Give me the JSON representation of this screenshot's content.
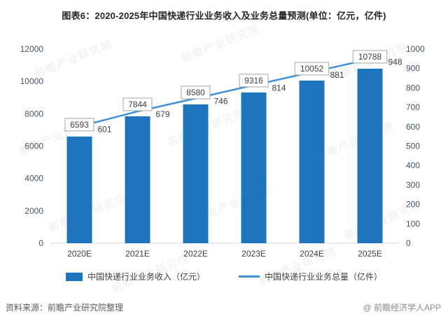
{
  "title": "图表6：2020-2025年中国快递行业业务收入及业务总量预测(单位：亿元，亿件)",
  "chart_data": {
    "type": "combo",
    "categories": [
      "2020E",
      "2021E",
      "2022E",
      "2023E",
      "2024E",
      "2025E"
    ],
    "series": [
      {
        "name": "中国快递行业业务收入（亿元）",
        "type": "bar",
        "axis": "left",
        "values": [
          6593,
          7844,
          8580,
          9316,
          10052,
          10788
        ],
        "color": "#1d76bd"
      },
      {
        "name": "中国快递行业业务总量（亿件）",
        "type": "line",
        "axis": "right",
        "values": [
          601,
          679,
          746,
          814,
          881,
          948
        ],
        "color": "#4090d5"
      }
    ],
    "left_axis": {
      "min": 0,
      "max": 12000,
      "step": 2000
    },
    "right_axis": {
      "min": 0,
      "max": 1000,
      "step": 100
    },
    "grid": false,
    "legend_position": "bottom",
    "data_labels": true
  },
  "watermark": "前瞻产业研究院",
  "footer": {
    "source": "资料来源：前瞻产业研究院整理",
    "brand": "@ 前瞻经济学人APP"
  }
}
